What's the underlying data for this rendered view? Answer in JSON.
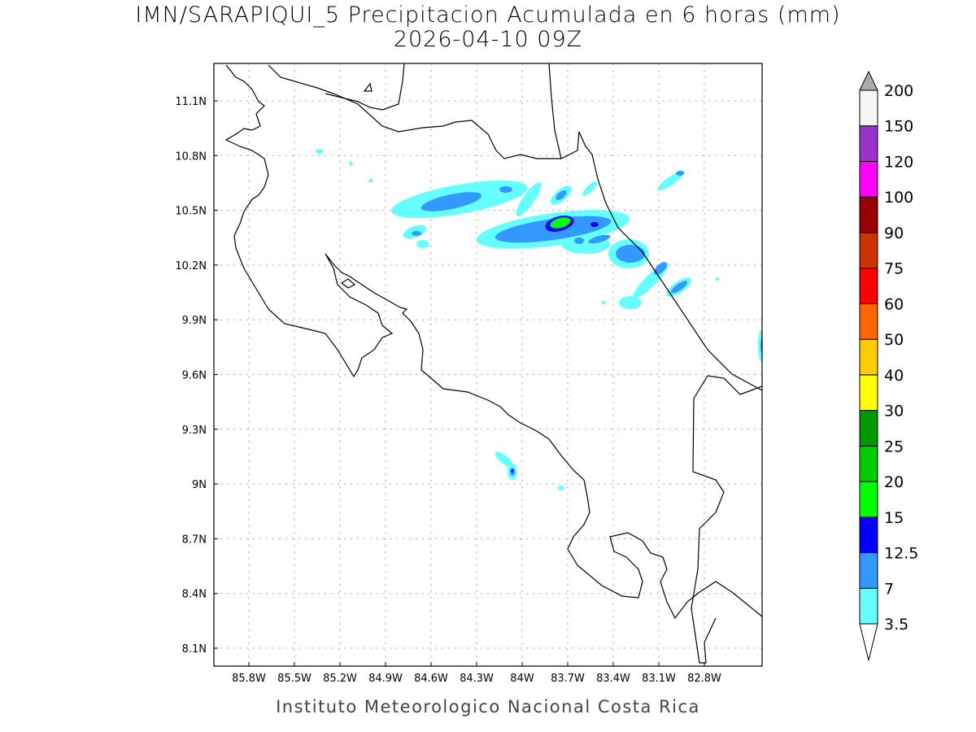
{
  "title": "IMN/SARAPIQUI_5 Precipitacion Acumulada en 6 horas (mm)",
  "subtitle": "2026-04-10 09Z",
  "footer": "Instituto Meteorologico Nacional Costa Rica",
  "map": {
    "region": "Costa Rica",
    "lon_range": [
      -86.03,
      -82.42
    ],
    "lat_range": [
      8.0,
      11.3
    ],
    "grid": "dotted",
    "lon_ticks": [
      "85.8W",
      "85.5W",
      "85.2W",
      "84.9W",
      "84.6W",
      "84.3W",
      "84W",
      "83.7W",
      "83.4W",
      "83.1W",
      "82.8W"
    ],
    "lat_ticks": [
      "11.1N",
      "10.8N",
      "10.5N",
      "10.2N",
      "9.9N",
      "9.6N",
      "9.3N",
      "9N",
      "8.7N",
      "8.4N",
      "8.1N"
    ]
  },
  "colorbar": {
    "labels": [
      "3.5",
      "7",
      "12.5",
      "15",
      "20",
      "25",
      "30",
      "40",
      "50",
      "60",
      "75",
      "90",
      "100",
      "120",
      "150",
      "200"
    ],
    "colors": [
      "#66ffff",
      "#3399ff",
      "#0000ff",
      "#00ff00",
      "#00cc00",
      "#009900",
      "#ffff00",
      "#ffcc00",
      "#ff6600",
      "#ff0000",
      "#cc3300",
      "#990000",
      "#ff00ff",
      "#9933cc",
      "#f5f5f5"
    ],
    "over_color": "#aaaaaa",
    "under_color": "#ffffff"
  }
}
